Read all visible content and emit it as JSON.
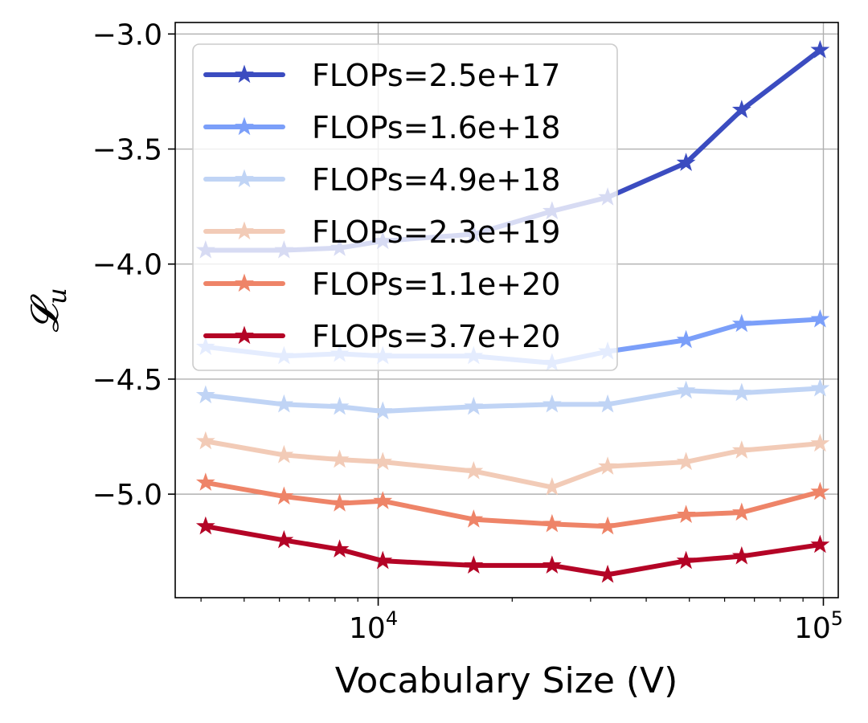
{
  "chart_data": {
    "type": "line",
    "xlabel": "Vocabulary Size (V)",
    "ylabel": "𝓛",
    "ylabel_sub": "u",
    "xscale": "log",
    "xlim": [
      3500,
      108000
    ],
    "ylim": [
      -5.45,
      -2.95
    ],
    "grid": true,
    "legend_placement": "top-left",
    "x": [
      4096,
      6144,
      8192,
      10240,
      16384,
      24576,
      32768,
      49152,
      65536,
      98304
    ],
    "x_tick_labels": [
      {
        "base": "10",
        "exp": "4",
        "value": 10000
      },
      {
        "base": "10",
        "exp": "5",
        "value": 100000
      }
    ],
    "y_ticks": [
      {
        "value": -3.0,
        "label": "−3.0"
      },
      {
        "value": -3.5,
        "label": "−3.5"
      },
      {
        "value": -4.0,
        "label": "−4.0"
      },
      {
        "value": -4.5,
        "label": "−4.5"
      },
      {
        "value": -5.0,
        "label": "−5.0"
      }
    ],
    "series": [
      {
        "name": "FLOPs=2.5e+17",
        "color": "#3b4cc0",
        "values": [
          -3.94,
          -3.94,
          -3.93,
          -3.9,
          -3.87,
          -3.77,
          -3.71,
          -3.56,
          -3.33,
          -3.07
        ]
      },
      {
        "name": "FLOPs=1.6e+18",
        "color": "#7b9ff9",
        "values": [
          -4.36,
          -4.4,
          -4.39,
          -4.4,
          -4.4,
          -4.43,
          -4.38,
          -4.33,
          -4.26,
          -4.24
        ]
      },
      {
        "name": "FLOPs=4.9e+18",
        "color": "#c0d4f5",
        "values": [
          -4.57,
          -4.61,
          -4.62,
          -4.64,
          -4.62,
          -4.61,
          -4.61,
          -4.55,
          -4.56,
          -4.54
        ]
      },
      {
        "name": "FLOPs=2.3e+19",
        "color": "#f2cbb7",
        "values": [
          -4.77,
          -4.83,
          -4.85,
          -4.86,
          -4.9,
          -4.97,
          -4.88,
          -4.86,
          -4.81,
          -4.78
        ]
      },
      {
        "name": "FLOPs=1.1e+20",
        "color": "#ee8468",
        "values": [
          -4.95,
          -5.01,
          -5.04,
          -5.03,
          -5.11,
          -5.13,
          -5.14,
          -5.09,
          -5.08,
          -4.99
        ]
      },
      {
        "name": "FLOPs=3.7e+20",
        "color": "#b40426",
        "values": [
          -5.14,
          -5.2,
          -5.24,
          -5.29,
          -5.31,
          -5.31,
          -5.35,
          -5.29,
          -5.27,
          -5.22
        ]
      }
    ]
  }
}
